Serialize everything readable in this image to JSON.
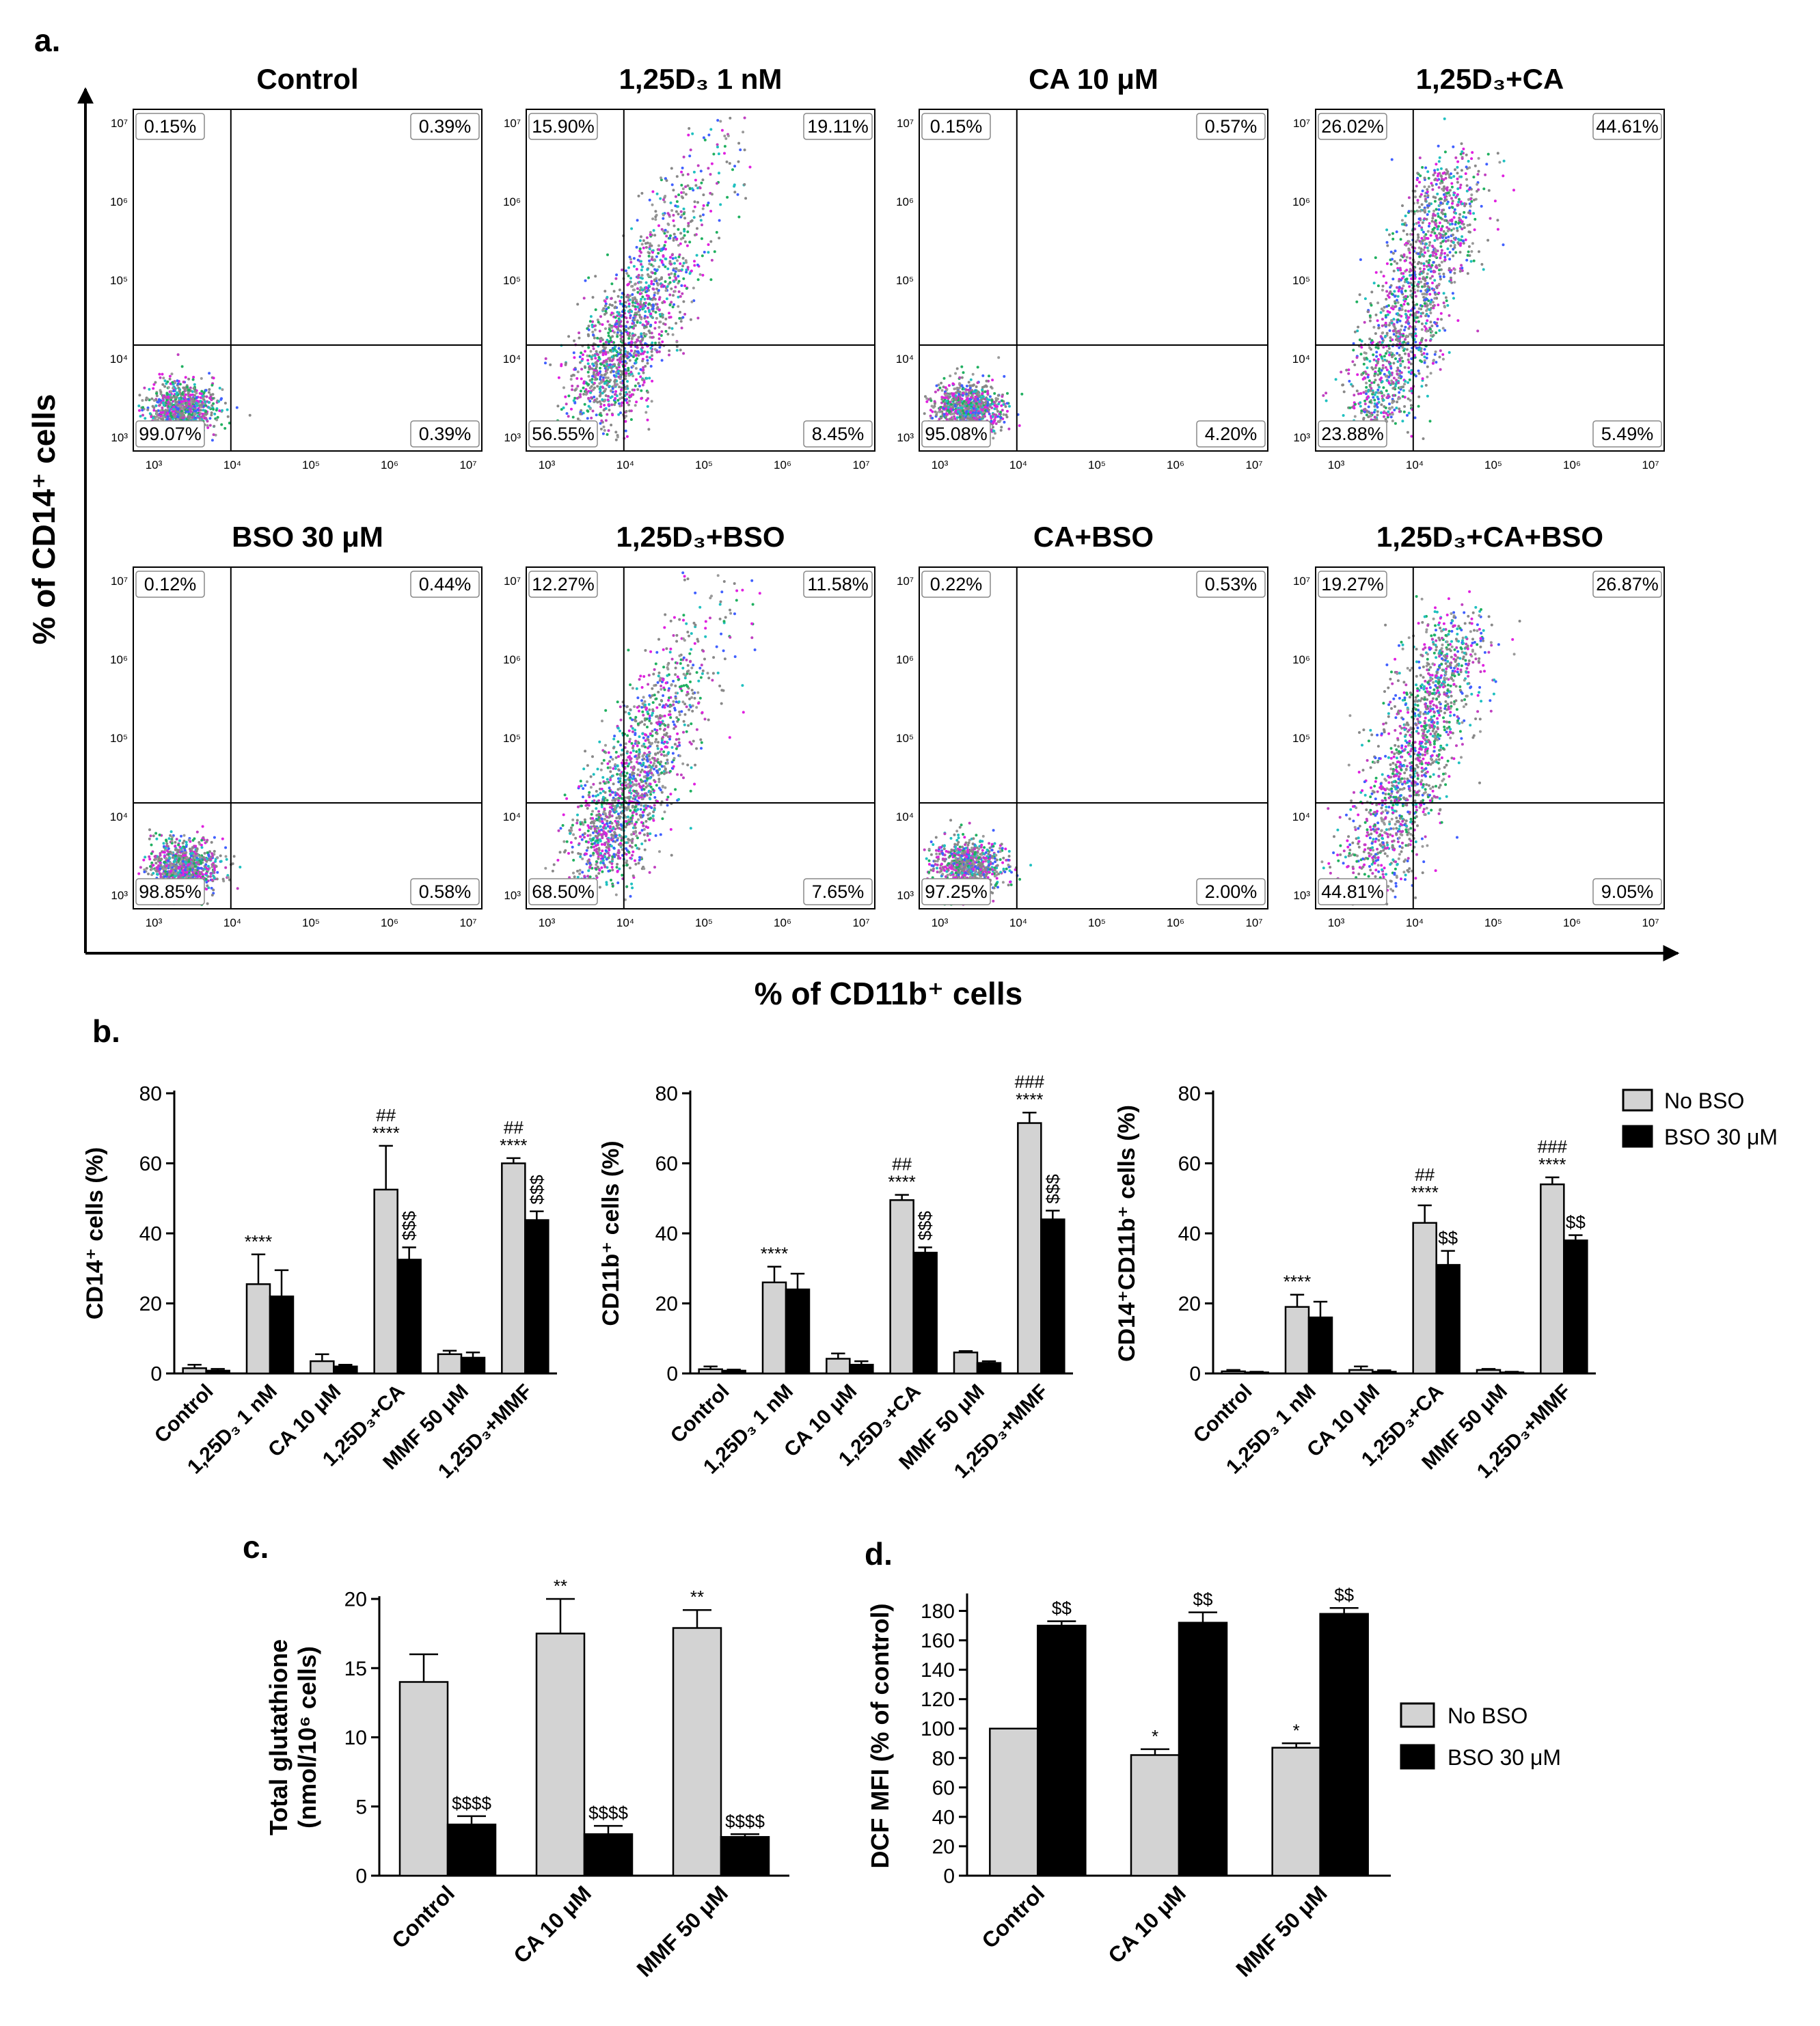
{
  "colors": {
    "no_bso": "#d3d3d3",
    "bso": "#000000"
  },
  "panel_a": {
    "label": "a.",
    "y_axis_title": "% of CD14⁺ cells",
    "x_axis_title": "% of CD11b⁺ cells",
    "tick_labels": [
      "10³",
      "10⁴",
      "10⁵",
      "10⁶",
      "10⁷"
    ],
    "plots": [
      {
        "title": "Control",
        "q": {
          "ul": "0.15%",
          "ur": "0.39%",
          "ll": "99.07%",
          "lr": "0.39%"
        },
        "pop": "tight"
      },
      {
        "title": "1,25D₃  1 nM",
        "q": {
          "ul": "15.90%",
          "ur": "19.11%",
          "ll": "56.55%",
          "lr": "8.45%"
        },
        "pop": "medium"
      },
      {
        "title": "CA 10 μM",
        "q": {
          "ul": "0.15%",
          "ur": "0.57%",
          "ll": "95.08%",
          "lr": "4.20%"
        },
        "pop": "tight"
      },
      {
        "title": "1,25D₃+CA",
        "q": {
          "ul": "26.02%",
          "ur": "44.61%",
          "ll": "23.88%",
          "lr": "5.49%"
        },
        "pop": "high"
      },
      {
        "title": "BSO 30 μM",
        "q": {
          "ul": "0.12%",
          "ur": "0.44%",
          "ll": "98.85%",
          "lr": "0.58%"
        },
        "pop": "tight"
      },
      {
        "title": "1,25D₃+BSO",
        "q": {
          "ul": "12.27%",
          "ur": "11.58%",
          "ll": "68.50%",
          "lr": "7.65%"
        },
        "pop": "medium"
      },
      {
        "title": "CA+BSO",
        "q": {
          "ul": "0.22%",
          "ur": "0.53%",
          "ll": "97.25%",
          "lr": "2.00%"
        },
        "pop": "tight"
      },
      {
        "title": "1,25D₃+CA+BSO",
        "q": {
          "ul": "19.27%",
          "ur": "26.87%",
          "ll": "44.81%",
          "lr": "9.05%"
        },
        "pop": "high"
      }
    ]
  },
  "panel_b_label": "b.",
  "panel_c_label": "c.",
  "panel_d_label": "d.",
  "legend": {
    "no_bso": "No BSO",
    "bso": "BSO 30 μM"
  },
  "chart_data": [
    {
      "id": "b1",
      "type": "bar",
      "ylabel": "CD14⁺ cells (%)",
      "ylim": [
        0,
        80
      ],
      "yticks": [
        0,
        20,
        40,
        60,
        80
      ],
      "categories": [
        "Control",
        "1,25D₃ 1 nM",
        "CA 10 μM",
        "1,25D₃+CA",
        "MMF 50 μM",
        "1,25D₃+MMF"
      ],
      "series": [
        {
          "name": "No BSO",
          "values": [
            1.5,
            25.5,
            3.5,
            52.5,
            5.5,
            60
          ],
          "errors": [
            1,
            8.5,
            2,
            12.5,
            1,
            1.5
          ],
          "annotations": [
            "",
            "****",
            "",
            "****|##",
            "",
            "****|##"
          ]
        },
        {
          "name": "BSO 30 μM",
          "values": [
            0.8,
            22,
            2,
            32.5,
            4.5,
            43.8
          ],
          "errors": [
            0.5,
            7.5,
            0.5,
            3.5,
            1.5,
            2.5
          ],
          "annotations": [
            "",
            "",
            "",
            "$$$",
            "",
            "$$$"
          ]
        }
      ]
    },
    {
      "id": "b2",
      "type": "bar",
      "ylabel": "CD11b⁺ cells (%)",
      "ylim": [
        0,
        80
      ],
      "yticks": [
        0,
        20,
        40,
        60,
        80
      ],
      "categories": [
        "Control",
        "1,25D₃ 1 nM",
        "CA 10 μM",
        "1,25D₃+CA",
        "MMF 50 μM",
        "1,25D₃+MMF"
      ],
      "series": [
        {
          "name": "No BSO",
          "values": [
            1.2,
            26,
            4.2,
            49.5,
            6,
            71.5
          ],
          "errors": [
            0.8,
            4.5,
            1.5,
            1.5,
            0.4,
            3
          ],
          "annotations": [
            "",
            "****",
            "",
            "****|##",
            "",
            "****|###"
          ]
        },
        {
          "name": "BSO 30 μM",
          "values": [
            0.8,
            24,
            2.5,
            34.5,
            3,
            44
          ],
          "errors": [
            0.3,
            4.5,
            1,
            1.5,
            0.5,
            2.5
          ],
          "annotations": [
            "",
            "",
            "",
            "$$$",
            "",
            "$$$"
          ]
        }
      ]
    },
    {
      "id": "b3",
      "type": "bar",
      "ylabel": "CD14⁺CD11b⁺ cells (%)",
      "ylim": [
        0,
        80
      ],
      "yticks": [
        0,
        20,
        40,
        60,
        80
      ],
      "categories": [
        "Control",
        "1,25D₃ 1 nM",
        "CA 10 μM",
        "1,25D₃+CA",
        "MMF 50 μM",
        "1,25D₃+MMF"
      ],
      "series": [
        {
          "name": "No BSO",
          "values": [
            0.6,
            19,
            1,
            43,
            1,
            54
          ],
          "errors": [
            0.4,
            3.5,
            1,
            5,
            0.3,
            2
          ],
          "annotations": [
            "",
            "****",
            "",
            "****|##",
            "",
            "****|###"
          ]
        },
        {
          "name": "BSO 30 μM",
          "values": [
            0.3,
            16,
            0.5,
            31,
            0.3,
            38
          ],
          "errors": [
            0.2,
            4.5,
            0.4,
            4,
            0.2,
            1.5
          ],
          "annotations": [
            "",
            "",
            "",
            "$$",
            "",
            "$$"
          ]
        }
      ]
    },
    {
      "id": "c",
      "type": "bar",
      "ylabel": "Total glutathione|(nmol/10⁶ cells)",
      "ylim": [
        0,
        20
      ],
      "yticks": [
        0,
        5,
        10,
        15,
        20
      ],
      "categories": [
        "Control",
        "CA 10 μM",
        "MMF 50 μM"
      ],
      "series": [
        {
          "name": "No BSO",
          "values": [
            14,
            17.5,
            17.9
          ],
          "errors": [
            2,
            2.5,
            1.3
          ],
          "annotations": [
            "",
            "**",
            "**"
          ]
        },
        {
          "name": "BSO 30 μM",
          "values": [
            3.7,
            3,
            2.8
          ],
          "errors": [
            0.6,
            0.6,
            0.2
          ],
          "annotations": [
            "$$$$",
            "$$$$",
            "$$$$"
          ]
        }
      ]
    },
    {
      "id": "d",
      "type": "bar",
      "ylabel": "DCF MFI (% of control)",
      "ylim": [
        0,
        190
      ],
      "yticks": [
        0,
        20,
        40,
        60,
        80,
        100,
        120,
        140,
        160,
        180
      ],
      "categories": [
        "Control",
        "CA 10 μM",
        "MMF 50 μM"
      ],
      "series": [
        {
          "name": "No BSO",
          "values": [
            100,
            82,
            87
          ],
          "errors": [
            0,
            4,
            3
          ],
          "annotations": [
            "",
            "*",
            "*"
          ]
        },
        {
          "name": "BSO 30 μM",
          "values": [
            170,
            172,
            178
          ],
          "errors": [
            3,
            7,
            4
          ],
          "annotations": [
            "$$",
            "$$",
            "$$"
          ]
        }
      ]
    }
  ]
}
